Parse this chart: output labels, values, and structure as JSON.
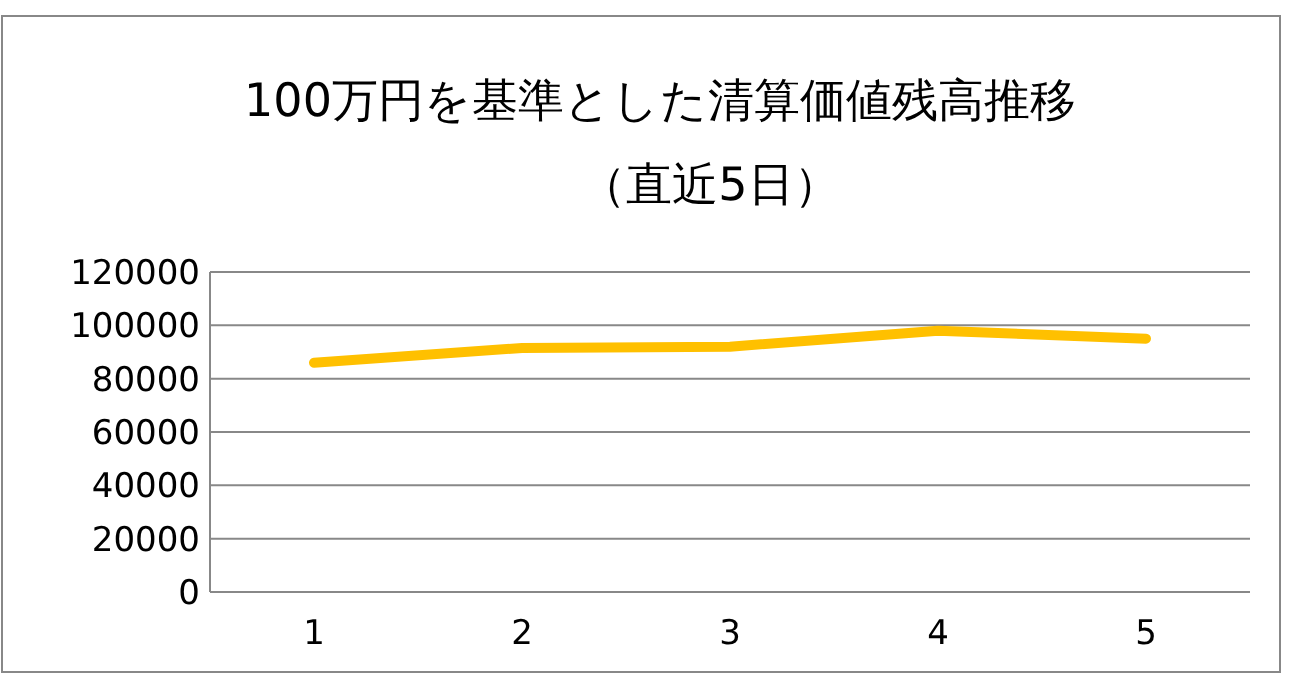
{
  "chart_data": {
    "type": "line",
    "title": "100万円を基準とした清算価値残高推移",
    "subtitle": "（直近5日）",
    "categories": [
      "1",
      "2",
      "3",
      "4",
      "5"
    ],
    "series": [
      {
        "color": "#ffc000",
        "values": [
          86000,
          91500,
          92000,
          98000,
          95000
        ]
      }
    ],
    "ylim": [
      0,
      120000
    ],
    "yticks": [
      0,
      20000,
      40000,
      60000,
      80000,
      100000,
      120000
    ],
    "grid": "y",
    "marker": "none",
    "line_style": "solid"
  }
}
